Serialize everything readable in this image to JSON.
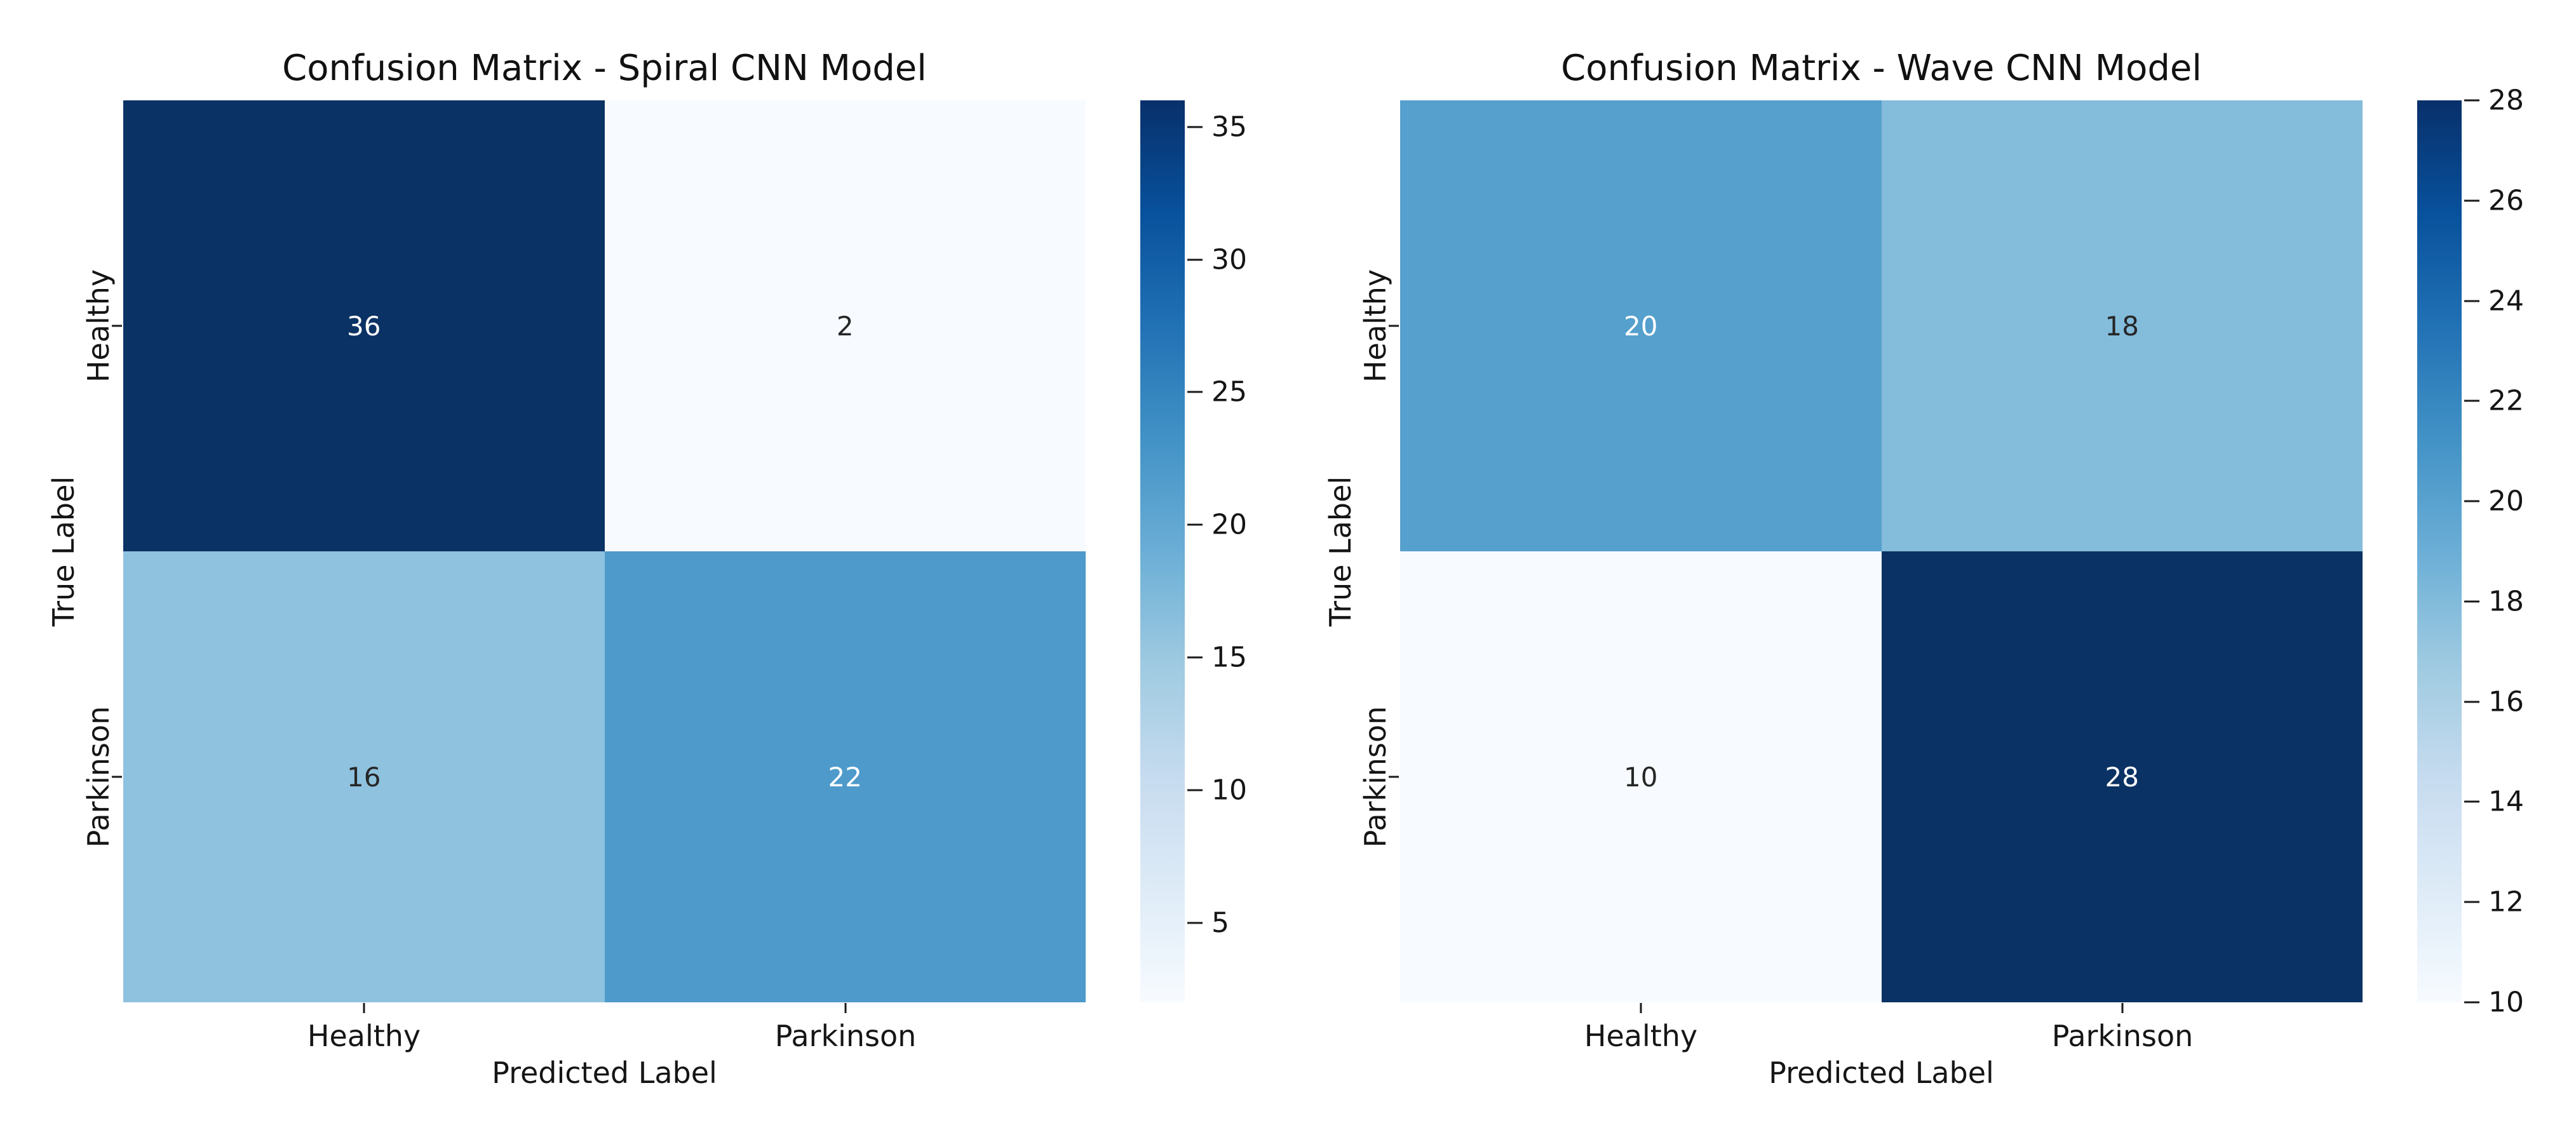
{
  "figure": {
    "background": "#ffffff",
    "layout": "1x2 subplots, side-by-side confusion matrix heatmaps, each with its own colorbar"
  },
  "chart_data": [
    {
      "type": "heatmap",
      "title": "Confusion Matrix - Spiral CNN Model",
      "xlabel": "Predicted Label",
      "ylabel": "True Label",
      "x_categories": [
        "Healthy",
        "Parkinson"
      ],
      "y_categories": [
        "Healthy",
        "Parkinson"
      ],
      "matrix": [
        [
          36,
          2
        ],
        [
          16,
          22
        ]
      ],
      "cell_colors": [
        [
          "#0b3264",
          "#f7fbff"
        ],
        [
          "#8fc2de",
          "#4e9acb"
        ]
      ],
      "cell_text_colors": [
        [
          "#ffffff",
          "#262626"
        ],
        [
          "#262626",
          "#ffffff"
        ]
      ],
      "grid": false,
      "legend": "none",
      "colorbar": {
        "cmap": "Blues",
        "vmin": 2,
        "vmax": 36,
        "ticks": [
          5,
          10,
          15,
          20,
          25,
          30,
          35
        ],
        "position": "right"
      }
    },
    {
      "type": "heatmap",
      "title": "Confusion Matrix - Wave CNN Model",
      "xlabel": "Predicted Label",
      "ylabel": "True Label",
      "x_categories": [
        "Healthy",
        "Parkinson"
      ],
      "y_categories": [
        "Healthy",
        "Parkinson"
      ],
      "matrix": [
        [
          20,
          18
        ],
        [
          10,
          28
        ]
      ],
      "cell_colors": [
        [
          "#55a0cd",
          "#84bcdb"
        ],
        [
          "#f7fbff",
          "#0b3264"
        ]
      ],
      "cell_text_colors": [
        [
          "#ffffff",
          "#262626"
        ],
        [
          "#262626",
          "#ffffff"
        ]
      ],
      "grid": false,
      "legend": "none",
      "colorbar": {
        "cmap": "Blues",
        "vmin": 10,
        "vmax": 28,
        "ticks": [
          10,
          12,
          14,
          16,
          18,
          20,
          22,
          24,
          26,
          28
        ],
        "position": "right"
      }
    }
  ]
}
